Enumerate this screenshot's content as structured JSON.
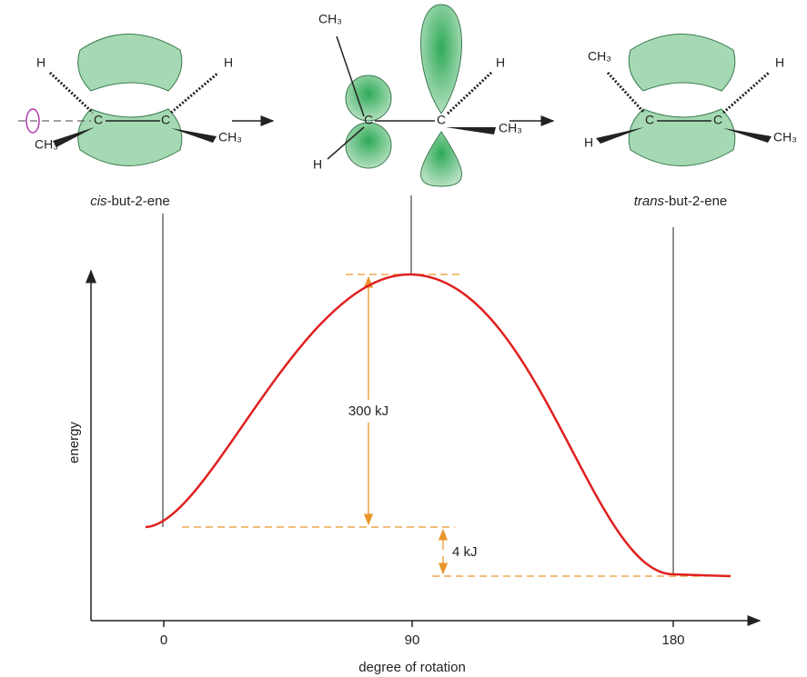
{
  "molecules": [
    {
      "atoms": [
        "H",
        "C",
        "C",
        "H",
        "CH₃",
        "CH₃"
      ],
      "name_italic": "cis",
      "name_rest": "-but-2-ene"
    },
    {
      "atoms": [
        "CH₃",
        "C",
        "C",
        "H",
        "H",
        "CH₃"
      ]
    },
    {
      "atoms": [
        "CH₃",
        "C",
        "C",
        "H",
        "H",
        "CH₃"
      ],
      "name_italic": "trans",
      "name_rest": "-but-2-ene"
    }
  ],
  "plot": {
    "y_label": "energy",
    "x_label": "degree of rotation",
    "x_ticks": [
      "0",
      "90",
      "180"
    ],
    "barrier_label": "300 kJ",
    "difference_label": "4 kJ"
  }
}
